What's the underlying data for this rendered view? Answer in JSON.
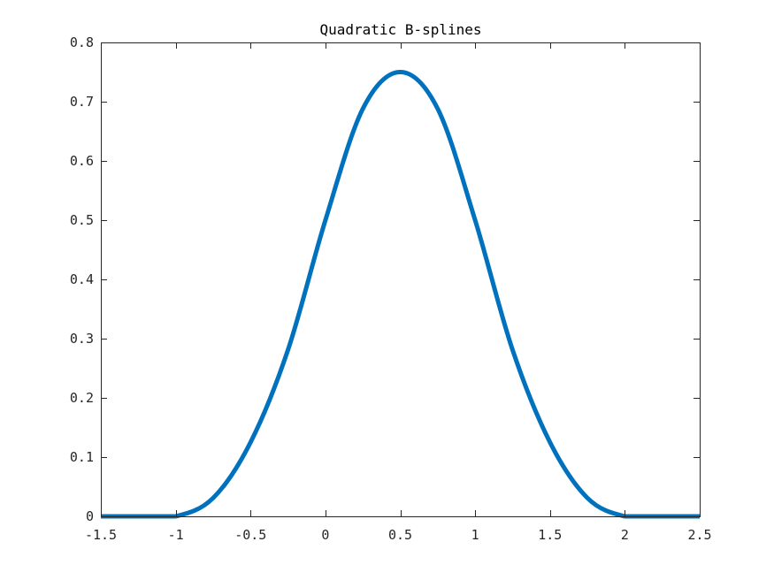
{
  "chart_data": {
    "type": "line",
    "title": "Quadratic B-splines",
    "xlabel": "",
    "ylabel": "",
    "xlim": [
      -1.5,
      2.5
    ],
    "ylim": [
      0,
      0.8
    ],
    "x_ticks": [
      "-1.5",
      "-1",
      "-0.5",
      "0",
      "0.5",
      "1",
      "1.5",
      "2",
      "2.5"
    ],
    "y_ticks": [
      "0",
      "0.1",
      "0.2",
      "0.3",
      "0.4",
      "0.5",
      "0.6",
      "0.7",
      "0.8"
    ],
    "grid": false,
    "legend": "none",
    "series": [
      {
        "color": "#0072BD",
        "x": [
          -1.5,
          -1.25,
          -1,
          -0.75,
          -0.5,
          -0.25,
          0,
          0.25,
          0.5,
          0.75,
          1,
          1.25,
          1.5,
          1.75,
          2,
          2.25,
          2.5
        ],
        "y": [
          0,
          0,
          0,
          0.031,
          0.125,
          0.281,
          0.5,
          0.688,
          0.75,
          0.688,
          0.5,
          0.281,
          0.125,
          0.031,
          0,
          0,
          0
        ]
      }
    ]
  }
}
